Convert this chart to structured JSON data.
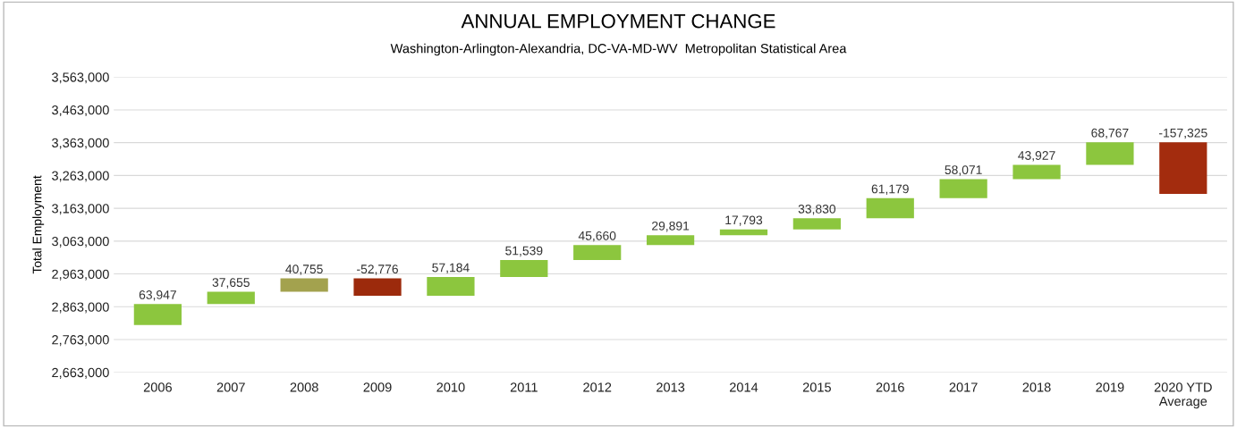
{
  "chart_data": {
    "type": "bar",
    "title": "ANNUAL EMPLOYMENT CHANGE",
    "subtitle": "Washington-Arlington-Alexandria, DC-VA-MD-WV  Metropolitan Statistical Area",
    "ylabel": "Total Employment",
    "categories": [
      "2006",
      "2007",
      "2008",
      "2009",
      "2010",
      "2011",
      "2012",
      "2013",
      "2014",
      "2015",
      "2016",
      "2017",
      "2018",
      "2019",
      "2020 YTD\nAverage"
    ],
    "values": [
      63947,
      37655,
      40755,
      -52776,
      57184,
      51539,
      45660,
      29891,
      17793,
      33830,
      61179,
      58071,
      43927,
      68767,
      -157325
    ],
    "base": [
      2807000,
      2870947,
      2908602,
      2949357,
      2896581,
      2953765,
      3005304,
      3050964,
      3080855,
      3098648,
      3132478,
      3193657,
      3251728,
      3295655,
      3364422
    ],
    "colors": [
      "#8cc63e",
      "#8cc63e",
      "#a3a24e",
      "#9c2a0c",
      "#8cc63e",
      "#8cc63e",
      "#8cc63e",
      "#8cc63e",
      "#8cc63e",
      "#8cc63e",
      "#8cc63e",
      "#8cc63e",
      "#8cc63e",
      "#8cc63e",
      "#a32c0e"
    ],
    "value_labels": [
      "63,947",
      "37,655",
      "40,755",
      "-52,776",
      "57,184",
      "51,539",
      "45,660",
      "29,891",
      "17,793",
      "33,830",
      "61,179",
      "58,071",
      "43,927",
      "68,767",
      "-157,325"
    ],
    "ylim": [
      2663000,
      3563000
    ],
    "yticks": [
      {
        "value": 2663000,
        "label": "2,663,000"
      },
      {
        "value": 2763000,
        "label": "2,763,000"
      },
      {
        "value": 2863000,
        "label": "2,863,000"
      },
      {
        "value": 2963000,
        "label": "2,963,000"
      },
      {
        "value": 3063000,
        "label": "3,063,000"
      },
      {
        "value": 3163000,
        "label": "3,163,000"
      },
      {
        "value": 3263000,
        "label": "3,263,000"
      },
      {
        "value": 3363000,
        "label": "3,363,000"
      },
      {
        "value": 3463000,
        "label": "3,463,000"
      },
      {
        "value": 3563000,
        "label": "3,563,000"
      }
    ],
    "grid": "y",
    "legend": false
  }
}
